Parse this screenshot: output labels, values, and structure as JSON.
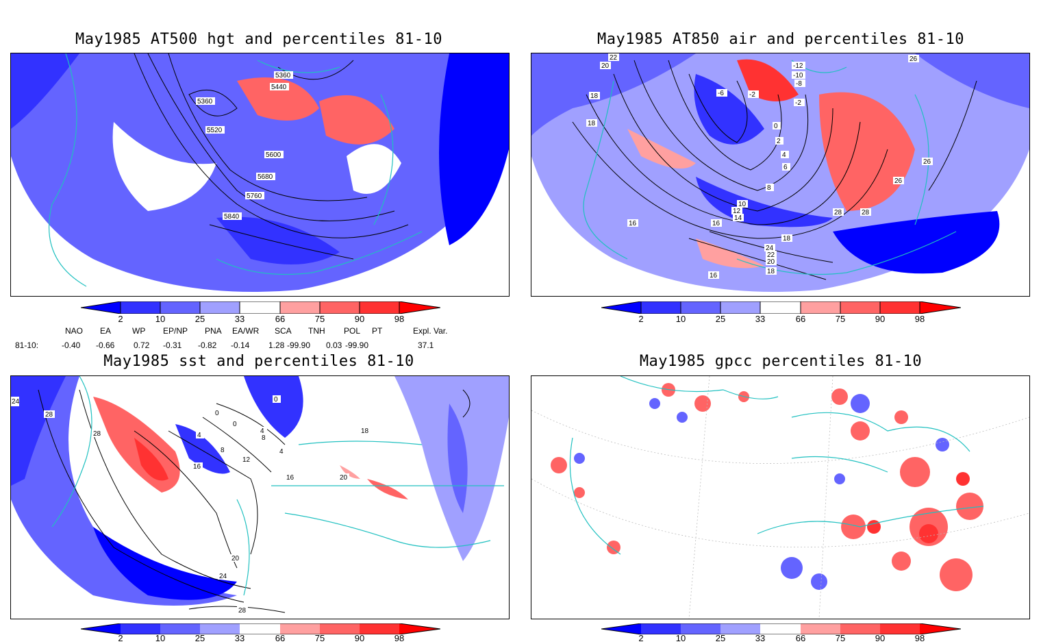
{
  "panels": [
    {
      "title": "May1985 AT500 hgt and percentiles 81-10",
      "contour_labels": [
        "5360",
        "5440",
        "5360",
        "5520",
        "5600",
        "5680",
        "5760",
        "5840"
      ]
    },
    {
      "title": "May1985 AT850 air and percentiles 81-10",
      "contour_labels": [
        "22",
        "20",
        "-12",
        "-10",
        "-8",
        "-6",
        "-2",
        "-2",
        "0",
        "2",
        "4",
        "6",
        "8",
        "10",
        "12",
        "14",
        "16",
        "18",
        "18",
        "16",
        "16",
        "18",
        "26",
        "26",
        "28",
        "28",
        "24",
        "22",
        "20",
        "18",
        "26"
      ]
    },
    {
      "title": "May1985 sst and percentiles 81-10",
      "contour_labels": [
        "24",
        "28",
        "28",
        "0",
        "0",
        "4",
        "4",
        "8",
        "8",
        "12",
        "16",
        "16",
        "20",
        "18",
        "20",
        "24",
        "28",
        "0",
        "4"
      ]
    },
    {
      "title": "May1985 gpcc percentiles 81-10",
      "contour_labels": []
    }
  ],
  "colorbar": {
    "labels": [
      "2",
      "10",
      "25",
      "33",
      "66",
      "75",
      "90",
      "98"
    ],
    "colors": [
      "#0000ff",
      "#3232ff",
      "#6464ff",
      "#a0a0ff",
      "#ffffff",
      "#ffa0a0",
      "#ff6464",
      "#ff3232",
      "#ff0000"
    ]
  },
  "indices": {
    "headers": [
      "NAO",
      "EA",
      "WP",
      "EP/NP",
      "PNA",
      "EA/WR",
      "SCA",
      "TNH",
      "POL",
      "PT",
      "Expl. Var."
    ],
    "row_label": "81-10:",
    "values": [
      "-0.40",
      "-0.66",
      "0.72",
      "-0.31",
      "-0.82",
      "-0.14",
      "1.28",
      "-99.90",
      "0.03",
      "-99.90",
      "37.1"
    ]
  }
}
